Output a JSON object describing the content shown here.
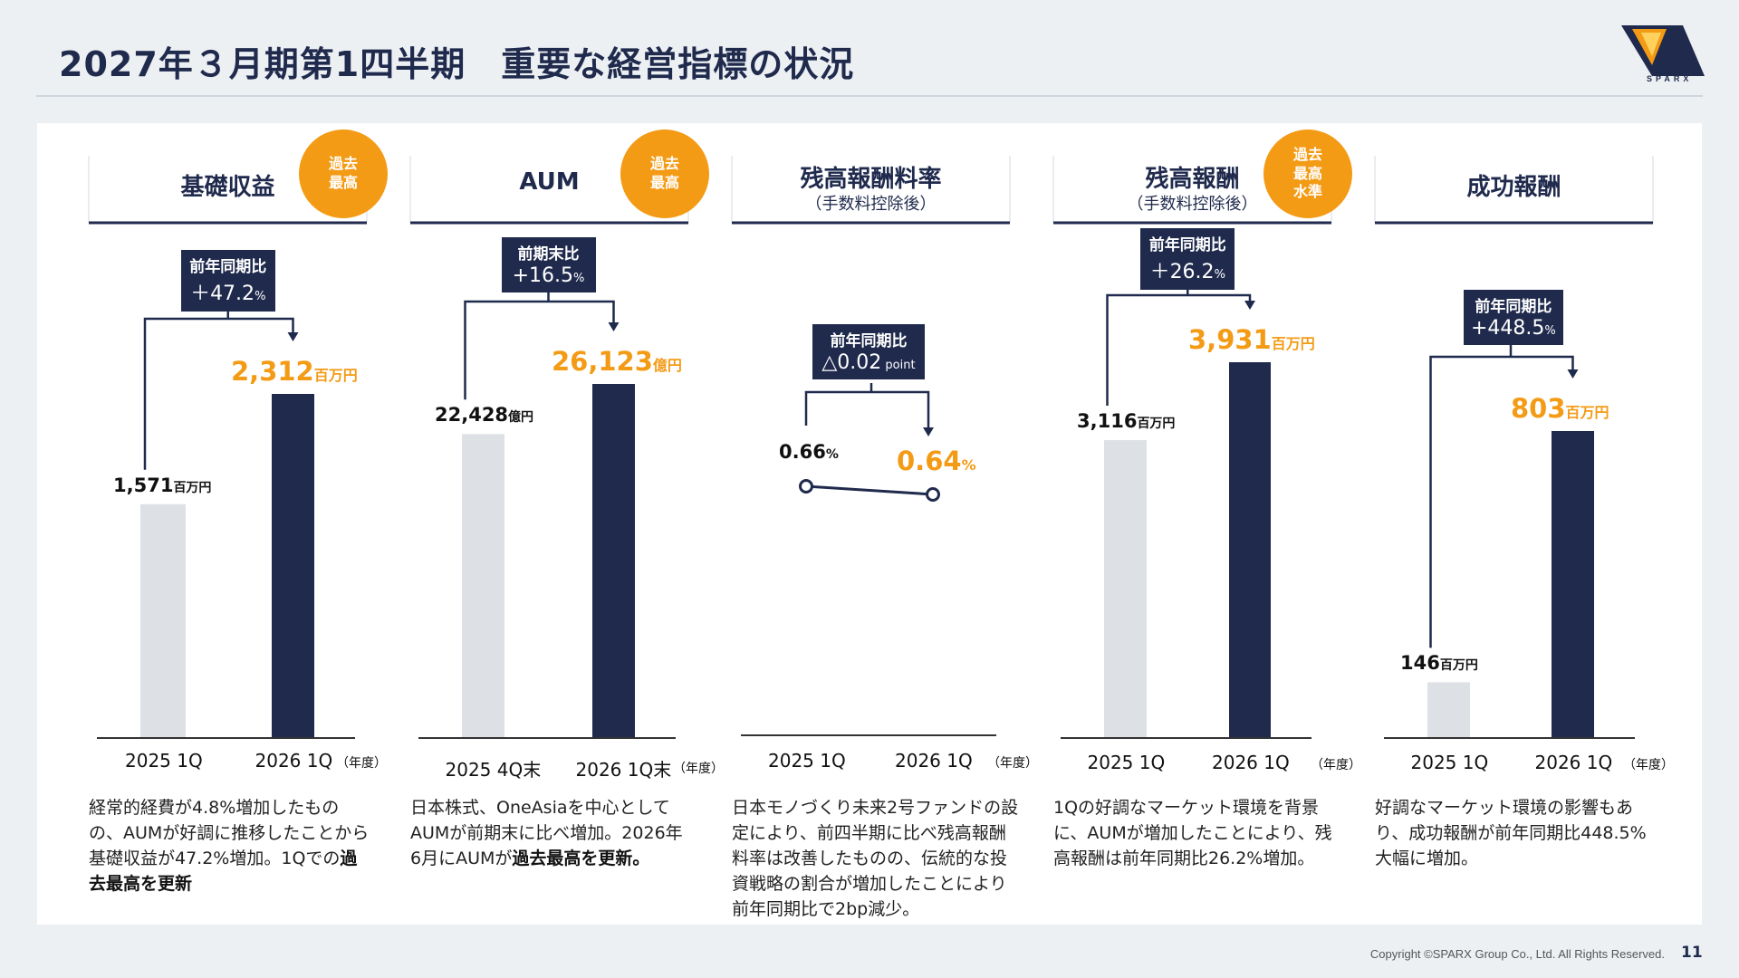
{
  "page": {
    "title": "2027年３月期第1四半期　重要な経営指標の状況",
    "logo_text": "SPARX",
    "copyright": "Copyright ©SPARX Group Co., Ltd. All Rights Reserved.",
    "page_number": "11",
    "colors": {
      "navy": "#1f2a4d",
      "orange": "#f49b16",
      "gray_bar": "#dde1e6"
    }
  },
  "chart_data": [
    {
      "type": "bar",
      "title": "基礎収益",
      "badge": "過去\n最高",
      "comparison": {
        "label": "前年同期比",
        "value": "＋47.2",
        "unit": "%"
      },
      "categories": [
        "2025 1Q",
        "2026 1Q"
      ],
      "values": [
        1571,
        2312
      ],
      "value_labels": [
        "1,571",
        "2,312"
      ],
      "unit_label": "百万円",
      "year_unit": "（年度）",
      "description": [
        "経常的経費が4.8%増加したものの、AUMが好調に推移したことから基礎収益が47.2%増加。1Qでの",
        "過去最高を更新"
      ]
    },
    {
      "type": "bar",
      "title": "AUM",
      "badge": "過去\n最高",
      "comparison": {
        "label": "前期末比",
        "value": "+16.5",
        "unit": "%"
      },
      "categories": [
        "2025 4Q末",
        "2026 1Q末"
      ],
      "values": [
        22428,
        26123
      ],
      "value_labels": [
        "22,428",
        "26,123"
      ],
      "unit_label": "億円",
      "year_unit": "（年度）",
      "description": [
        "日本株式、OneAsiaを中心としてAUMが前期末に比べ増加。2026年6月にAUMが",
        "過去最高を更新。"
      ]
    },
    {
      "type": "line",
      "title": "残高報酬料率",
      "subtitle": "（手数料控除後）",
      "comparison": {
        "label": "前年同期比",
        "value": "△0.02",
        "unit": " point"
      },
      "categories": [
        "2025 1Q",
        "2026 1Q"
      ],
      "values": [
        0.66,
        0.64
      ],
      "value_labels": [
        "0.66",
        "0.64"
      ],
      "unit_label": "%",
      "year_unit": "（年度）",
      "description": [
        "日本モノづくり未来2号ファンドの設定により、前四半期に比べ残高報酬料率は改善したものの、伝統的な投資戦略の割合が増加したことにより前年同期比で2bp減少。",
        ""
      ]
    },
    {
      "type": "bar",
      "title": "残高報酬",
      "subtitle": "（手数料控除後）",
      "badge": "過去\n最高\n水準",
      "comparison": {
        "label": "前年同期比",
        "value": "＋26.2",
        "unit": "%"
      },
      "categories": [
        "2025 1Q",
        "2026 1Q"
      ],
      "values": [
        3116,
        3931
      ],
      "value_labels": [
        "3,116",
        "3,931"
      ],
      "unit_label": "百万円",
      "year_unit": "（年度）",
      "description": [
        "1Qの好調なマーケット環境を背景に、AUMが増加したことにより、残高報酬は前年同期比26.2%増加。",
        ""
      ]
    },
    {
      "type": "bar",
      "title": "成功報酬",
      "comparison": {
        "label": "前年同期比",
        "value": "+448.5",
        "unit": "%"
      },
      "categories": [
        "2025 1Q",
        "2026 1Q"
      ],
      "values": [
        146,
        803
      ],
      "value_labels": [
        "146",
        "803"
      ],
      "unit_label": "百万円",
      "year_unit": "（年度）",
      "description": [
        "好調なマーケット環境の影響もあり、成功報酬が前年同期比448.5%大幅に増加。",
        ""
      ]
    }
  ]
}
